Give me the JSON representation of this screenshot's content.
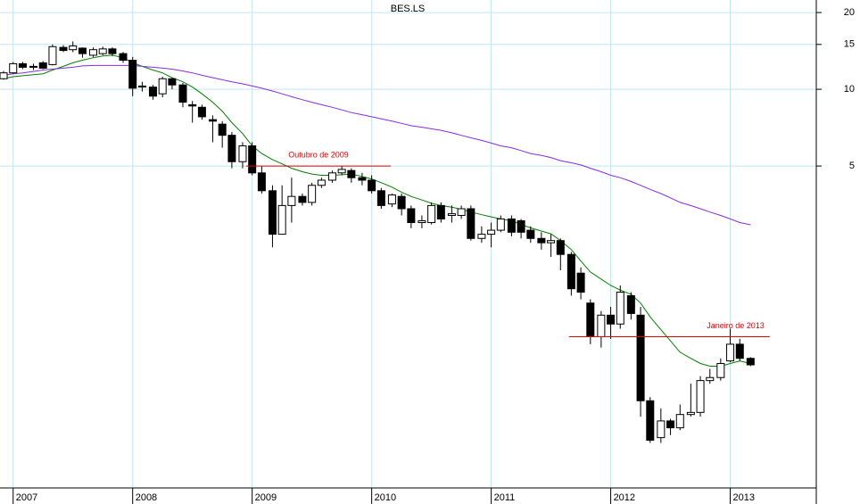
{
  "chart_data": {
    "type": "candlestick",
    "title": "BES.LS",
    "log_scale": true,
    "grid": true,
    "xlim": [
      2006.89,
      2013.72
    ],
    "xticks": [
      2007,
      2008,
      2009,
      2010,
      2011,
      2012,
      2013
    ],
    "ylim": [
      0.273,
      22.4
    ],
    "yticks": [
      20,
      15,
      10,
      5
    ],
    "up_color": "#ffffff",
    "down_color": "#000000",
    "x": [
      2006.92,
      2007.0,
      2007.08,
      2007.17,
      2007.25,
      2007.33,
      2007.42,
      2007.5,
      2007.58,
      2007.67,
      2007.75,
      2007.83,
      2007.92,
      2008.0,
      2008.08,
      2008.17,
      2008.25,
      2008.33,
      2008.42,
      2008.5,
      2008.58,
      2008.67,
      2008.75,
      2008.83,
      2008.92,
      2009.0,
      2009.08,
      2009.17,
      2009.25,
      2009.33,
      2009.42,
      2009.5,
      2009.58,
      2009.67,
      2009.75,
      2009.83,
      2009.92,
      2010.0,
      2010.08,
      2010.17,
      2010.25,
      2010.33,
      2010.42,
      2010.5,
      2010.58,
      2010.67,
      2010.75,
      2010.83,
      2010.92,
      2011.0,
      2011.08,
      2011.17,
      2011.25,
      2011.33,
      2011.42,
      2011.5,
      2011.58,
      2011.67,
      2011.75,
      2011.83,
      2011.92,
      2012.0,
      2012.08,
      2012.17,
      2012.25,
      2012.33,
      2012.42,
      2012.5,
      2012.58,
      2012.67,
      2012.75,
      2012.83,
      2012.92,
      2013.0,
      2013.08,
      2013.17
    ],
    "open": [
      11.0,
      11.6,
      12.6,
      12.2,
      12.7,
      12.5,
      14.6,
      14.3,
      14.5,
      13.6,
      13.8,
      14.4,
      13.8,
      13.0,
      10.2,
      10.2,
      9.6,
      11.0,
      10.4,
      8.7,
      8.5,
      7.6,
      7.3,
      6.6,
      5.2,
      6.0,
      4.7,
      4.0,
      2.7,
      3.5,
      3.8,
      3.6,
      4.2,
      4.4,
      4.7,
      4.8,
      4.5,
      4.4,
      4.0,
      3.55,
      3.8,
      3.4,
      3.0,
      3.0,
      3.5,
      3.2,
      3.2,
      3.4,
      2.6,
      2.7,
      2.8,
      3.1,
      3.05,
      2.8,
      2.6,
      2.5,
      2.55,
      2.25,
      1.9,
      1.45,
      1.07,
      1.3,
      1.2,
      1.55,
      1.3,
      0.6,
      0.43,
      0.5,
      0.47,
      0.53,
      0.54,
      0.72,
      0.74,
      0.86,
      1.0,
      0.88
    ],
    "high": [
      11.8,
      12.8,
      12.8,
      12.6,
      12.9,
      15.0,
      14.9,
      15.4,
      14.6,
      14.6,
      14.7,
      14.6,
      14.0,
      13.4,
      10.7,
      10.4,
      11.2,
      11.1,
      10.6,
      9.0,
      8.7,
      7.9,
      7.5,
      6.8,
      6.2,
      6.2,
      5.0,
      4.2,
      4.2,
      4.5,
      3.9,
      4.3,
      4.5,
      4.8,
      5.0,
      4.9,
      4.7,
      4.6,
      4.1,
      3.9,
      3.9,
      3.5,
      3.2,
      3.6,
      3.6,
      3.5,
      3.5,
      3.5,
      2.9,
      3.0,
      3.2,
      3.2,
      3.1,
      2.9,
      2.75,
      2.7,
      2.6,
      2.3,
      2.0,
      1.5,
      1.35,
      1.4,
      1.7,
      1.6,
      1.4,
      0.62,
      0.56,
      0.51,
      0.58,
      0.7,
      0.75,
      0.8,
      0.88,
      1.15,
      1.05,
      0.89
    ],
    "low": [
      10.9,
      11.5,
      12.0,
      11.9,
      12.0,
      12.4,
      14.0,
      14.0,
      13.3,
      13.4,
      13.6,
      13.5,
      12.7,
      9.4,
      9.8,
      9.1,
      9.3,
      10.0,
      8.5,
      7.4,
      7.6,
      6.2,
      5.9,
      4.9,
      4.9,
      4.6,
      3.9,
      2.4,
      2.7,
      3.0,
      3.5,
      3.5,
      4.1,
      4.3,
      4.6,
      4.3,
      4.2,
      3.9,
      3.4,
      3.45,
      3.2,
      2.85,
      2.85,
      2.95,
      3.0,
      3.0,
      3.1,
      2.55,
      2.5,
      2.4,
      2.75,
      2.65,
      2.6,
      2.5,
      2.35,
      2.2,
      1.95,
      1.55,
      1.5,
      1.0,
      0.97,
      1.05,
      1.15,
      1.25,
      0.52,
      0.41,
      0.41,
      0.44,
      0.46,
      0.52,
      0.52,
      0.7,
      0.72,
      0.85,
      0.86,
      0.82
    ],
    "close": [
      11.6,
      12.6,
      12.2,
      12.3,
      12.1,
      14.7,
      14.2,
      14.8,
      13.8,
      14.3,
      14.4,
      13.8,
      13.0,
      10.1,
      10.3,
      9.4,
      11.0,
      10.4,
      8.9,
      8.6,
      7.8,
      7.5,
      6.6,
      5.2,
      6.0,
      4.7,
      4.0,
      2.7,
      3.5,
      3.8,
      3.6,
      4.2,
      4.4,
      4.7,
      4.85,
      4.5,
      4.4,
      4.0,
      3.5,
      3.85,
      3.4,
      3.0,
      3.05,
      3.5,
      3.1,
      3.25,
      3.4,
      2.6,
      2.7,
      2.8,
      3.1,
      2.75,
      2.75,
      2.6,
      2.5,
      2.55,
      2.25,
      1.65,
      1.6,
      1.07,
      1.3,
      1.2,
      1.6,
      1.32,
      0.6,
      0.42,
      0.5,
      0.47,
      0.53,
      0.54,
      0.72,
      0.74,
      0.84,
      1.0,
      0.88,
      0.83
    ],
    "series": [
      {
        "color": "#008000",
        "values": [
          11.0,
          11.2,
          11.3,
          11.4,
          11.5,
          11.9,
          12.3,
          12.7,
          13.0,
          13.3,
          13.5,
          13.6,
          13.3,
          12.7,
          12.3,
          11.9,
          11.6,
          11.1,
          10.7,
          10.2,
          9.6,
          8.9,
          8.2,
          7.4,
          6.7,
          6.0,
          5.6,
          5.3,
          5.1,
          4.9,
          4.75,
          4.65,
          4.6,
          4.6,
          4.62,
          4.65,
          4.55,
          4.45,
          4.3,
          4.13,
          3.95,
          3.8,
          3.68,
          3.57,
          3.5,
          3.45,
          3.38,
          3.3,
          3.22,
          3.16,
          3.1,
          3.05,
          2.95,
          2.86,
          2.78,
          2.71,
          2.55,
          2.35,
          2.12,
          1.92,
          1.8,
          1.7,
          1.63,
          1.57,
          1.45,
          1.28,
          1.14,
          1.03,
          0.93,
          0.88,
          0.84,
          0.82,
          0.82,
          0.84,
          0.86,
          0.84
        ]
      },
      {
        "color": "#8a2be2",
        "values": [
          11.35,
          11.5,
          11.6,
          11.75,
          11.9,
          12.0,
          12.1,
          12.2,
          12.35,
          12.4,
          12.4,
          12.4,
          12.4,
          12.4,
          12.3,
          12.2,
          12.1,
          12.0,
          11.8,
          11.6,
          11.35,
          11.1,
          10.9,
          10.7,
          10.5,
          10.3,
          10.1,
          9.85,
          9.6,
          9.35,
          9.1,
          8.9,
          8.7,
          8.5,
          8.3,
          8.1,
          7.95,
          7.8,
          7.65,
          7.5,
          7.35,
          7.2,
          7.1,
          7.0,
          6.9,
          6.75,
          6.6,
          6.45,
          6.3,
          6.15,
          6.0,
          5.9,
          5.75,
          5.6,
          5.5,
          5.4,
          5.25,
          5.15,
          5.05,
          4.9,
          4.75,
          4.6,
          4.5,
          4.35,
          4.2,
          4.05,
          3.9,
          3.75,
          3.6,
          3.5,
          3.4,
          3.3,
          3.2,
          3.1,
          3.0,
          2.94
        ]
      }
    ],
    "annotations": [
      {
        "text": "Outubro de 2009",
        "value": 5.0,
        "x": [
          2008.95,
          2010.16
        ],
        "color": "#e00000"
      },
      {
        "text": "Janeiro de 2013",
        "value": 1.07,
        "x": [
          2011.65,
          2013.33
        ],
        "color": "#e00000"
      }
    ]
  }
}
